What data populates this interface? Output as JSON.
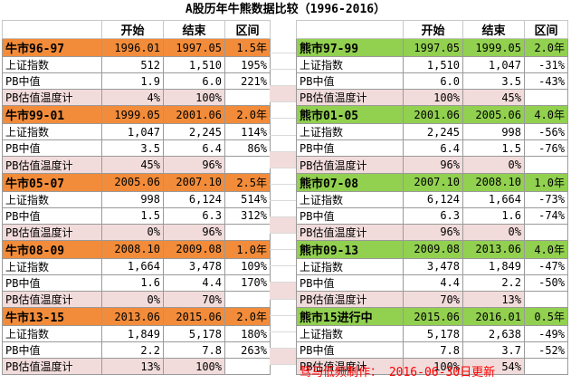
{
  "title": "A股历年牛熊数据比较（1996-2016）",
  "headers": {
    "start": "开始",
    "end": "结束",
    "range": "区间"
  },
  "row_labels": {
    "index": "上证指数",
    "pb": "PB中值",
    "temp": "PB估值温度计"
  },
  "colors": {
    "bull": "#f28c3a",
    "bear": "#92d050",
    "pink": "#f2dcdb",
    "footer": "#ff0000"
  },
  "bull": [
    {
      "name": "牛市96-97",
      "start": "1996.01",
      "end": "1997.05",
      "range": "1.5年",
      "index": [
        "512",
        "1,510",
        "195%"
      ],
      "pb": [
        "1.9",
        "6.0",
        "221%"
      ],
      "temp": [
        "4%",
        "100%"
      ]
    },
    {
      "name": "牛市99-01",
      "start": "1999.05",
      "end": "2001.06",
      "range": "2.0年",
      "index": [
        "1,047",
        "2,245",
        "114%"
      ],
      "pb": [
        "3.5",
        "6.4",
        "86%"
      ],
      "temp": [
        "45%",
        "96%"
      ]
    },
    {
      "name": "牛市05-07",
      "start": "2005.06",
      "end": "2007.10",
      "range": "2.5年",
      "index": [
        "998",
        "6,124",
        "514%"
      ],
      "pb": [
        "1.5",
        "6.3",
        "312%"
      ],
      "temp": [
        "0%",
        "96%"
      ]
    },
    {
      "name": "牛市08-09",
      "start": "2008.10",
      "end": "2009.08",
      "range": "1.0年",
      "index": [
        "1,664",
        "3,478",
        "109%"
      ],
      "pb": [
        "1.6",
        "4.4",
        "170%"
      ],
      "temp": [
        "0%",
        "70%"
      ]
    },
    {
      "name": "牛市13-15",
      "start": "2013.06",
      "end": "2015.06",
      "range": "2.0年",
      "index": [
        "1,849",
        "5,178",
        "180%"
      ],
      "pb": [
        "2.2",
        "7.8",
        "263%"
      ],
      "temp": [
        "13%",
        "100%"
      ]
    }
  ],
  "bear": [
    {
      "name": "熊市97-99",
      "start": "1997.05",
      "end": "1999.05",
      "range": "2.0年",
      "index": [
        "1,510",
        "1,047",
        "-31%"
      ],
      "pb": [
        "6.0",
        "3.5",
        "-43%"
      ],
      "temp": [
        "100%",
        "45%"
      ]
    },
    {
      "name": "熊市01-05",
      "start": "2001.06",
      "end": "2005.06",
      "range": "4.0年",
      "index": [
        "2,245",
        "998",
        "-56%"
      ],
      "pb": [
        "6.4",
        "1.5",
        "-76%"
      ],
      "temp": [
        "96%",
        "0%"
      ]
    },
    {
      "name": "熊市07-08",
      "start": "2007.10",
      "end": "2008.10",
      "range": "1.0年",
      "index": [
        "6,124",
        "1,664",
        "-73%"
      ],
      "pb": [
        "6.3",
        "1.6",
        "-74%"
      ],
      "temp": [
        "96%",
        "0%"
      ]
    },
    {
      "name": "熊市09-13",
      "start": "2009.08",
      "end": "2013.06",
      "range": "4.0年",
      "index": [
        "3,478",
        "1,849",
        "-47%"
      ],
      "pb": [
        "4.4",
        "2.2",
        "-50%"
      ],
      "temp": [
        "70%",
        "13%"
      ]
    },
    {
      "name": "熊市15进行中",
      "start": "2015.06",
      "end": "2016.01",
      "range": "0.5年",
      "index": [
        "5,178",
        "2,638",
        "-49%"
      ],
      "pb": [
        "7.8",
        "3.7",
        "-52%"
      ],
      "temp": [
        "100%",
        "54%"
      ]
    }
  ],
  "footer": "驽马低频制作：  2016-06-30日更新"
}
